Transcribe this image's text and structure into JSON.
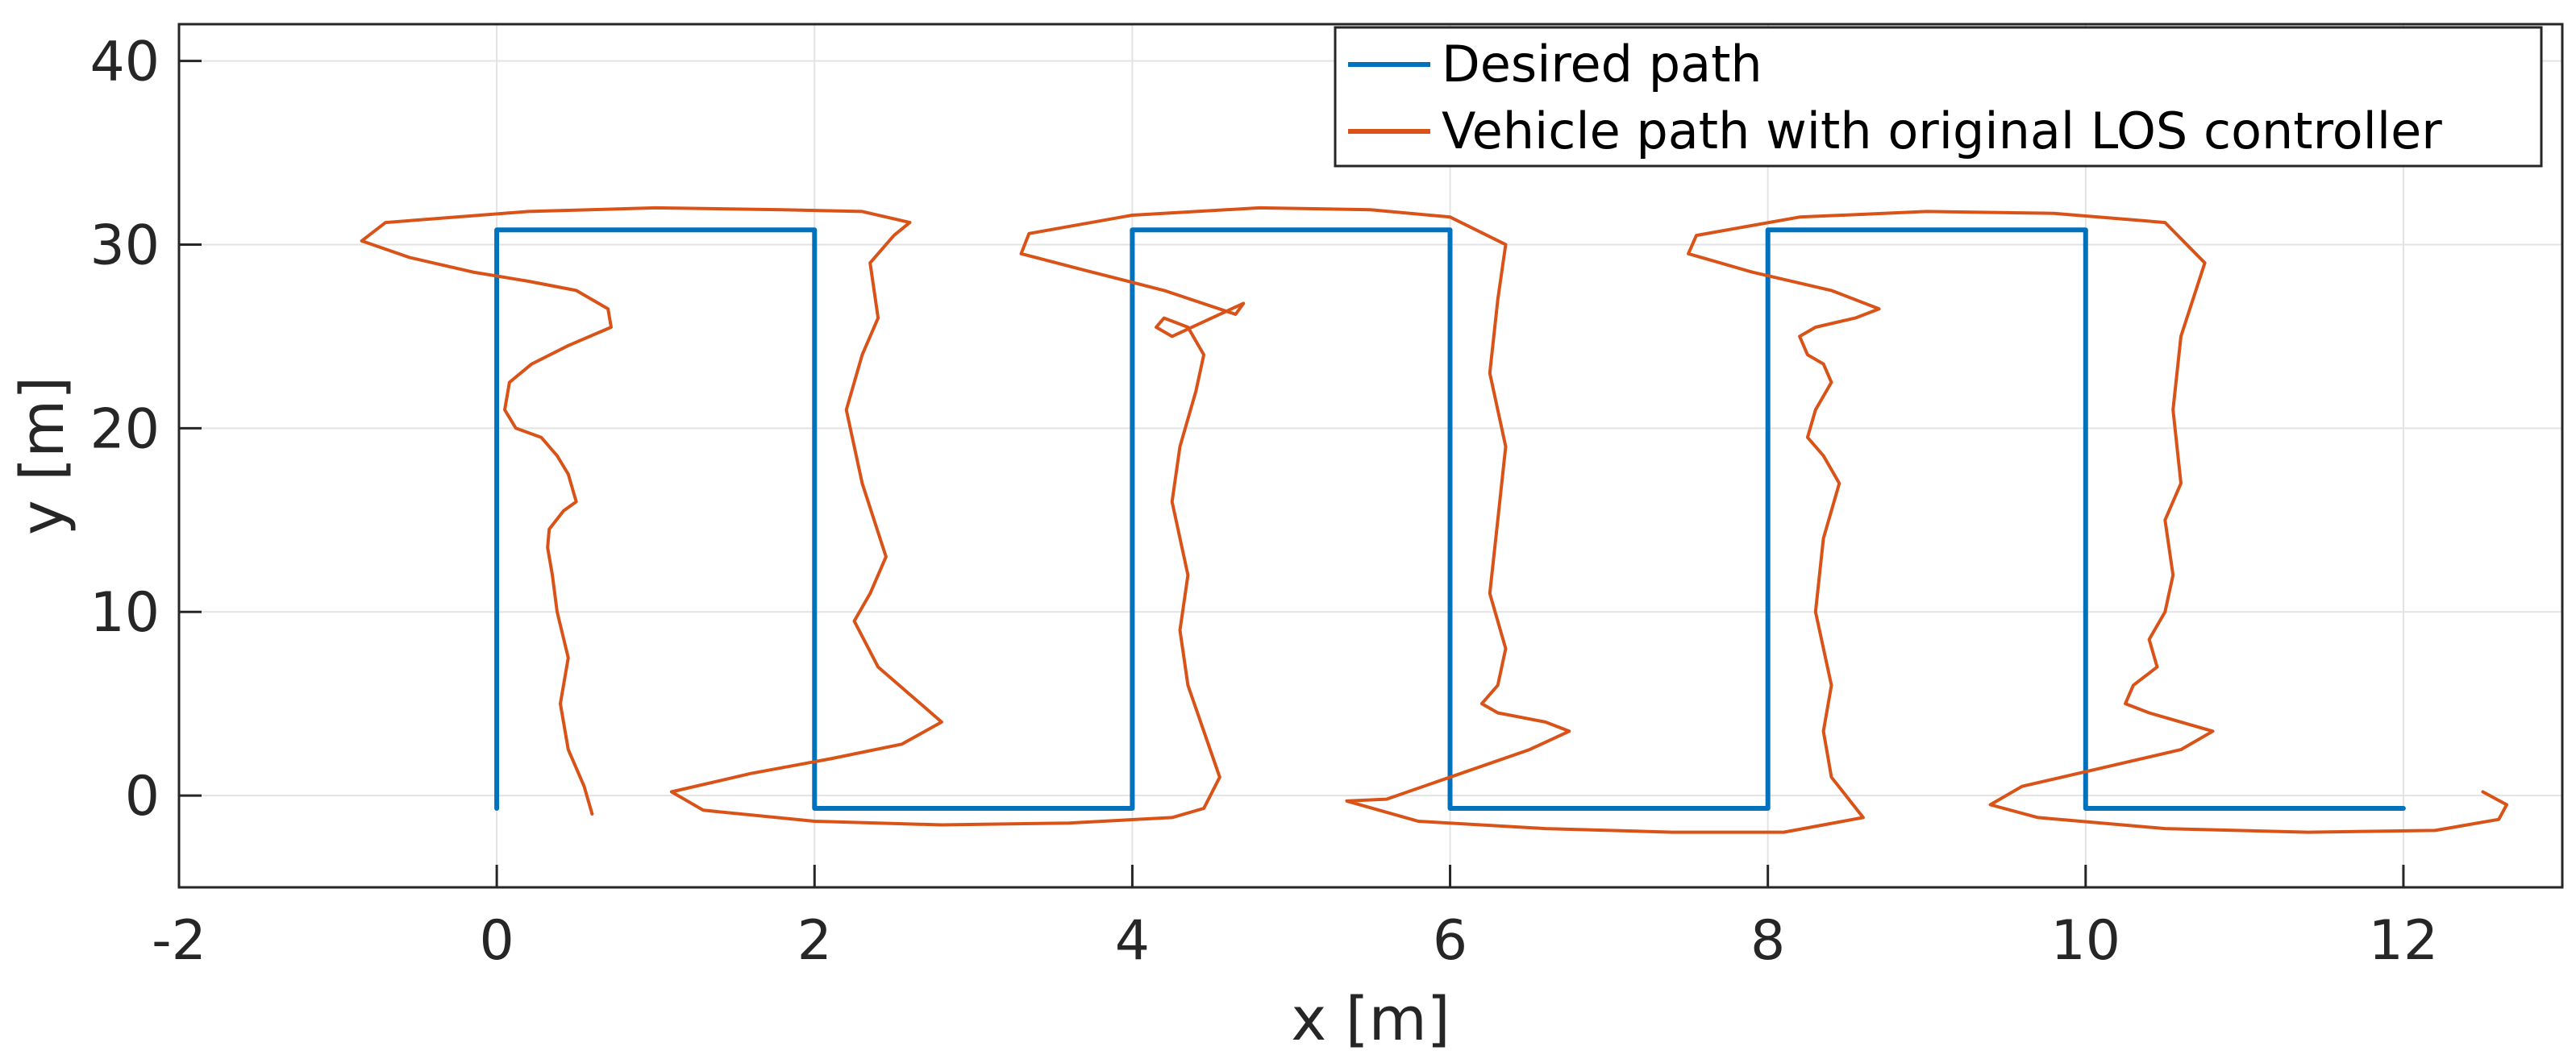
{
  "chart_data": {
    "type": "line",
    "xlabel": "x [m]",
    "ylabel": "y [m]",
    "xlim": [
      -2,
      13
    ],
    "ylim": [
      -5,
      42
    ],
    "xticks": [
      -2,
      0,
      2,
      4,
      6,
      8,
      10,
      12
    ],
    "yticks": [
      0,
      10,
      20,
      30,
      40
    ],
    "xtick_labels": [
      "-2",
      "0",
      "2",
      "4",
      "6",
      "8",
      "10",
      "12"
    ],
    "ytick_labels": [
      "0",
      "10",
      "20",
      "30",
      "40"
    ],
    "grid": true,
    "legend_position": "top-right",
    "series": [
      {
        "name": "Desired path",
        "color": "#0072BD",
        "x": [
          0,
          0,
          2,
          2,
          4,
          4,
          6,
          6,
          8,
          8,
          10,
          10,
          12
        ],
        "y": [
          -0.7,
          30.8,
          30.8,
          -0.7,
          -0.7,
          30.8,
          30.8,
          -0.7,
          -0.7,
          30.8,
          30.8,
          -0.7,
          -0.7
        ]
      },
      {
        "name": "Vehicle path with original LOS controller",
        "color": "#D95319",
        "x": [
          0.6,
          0.55,
          0.45,
          0.4,
          0.45,
          0.38,
          0.35,
          0.32,
          0.33,
          0.42,
          0.5,
          0.45,
          0.38,
          0.28,
          0.12,
          0.05,
          0.08,
          0.22,
          0.45,
          0.72,
          0.7,
          0.5,
          0.2,
          -0.15,
          -0.55,
          -0.85,
          -0.7,
          0.2,
          1.0,
          1.8,
          2.3,
          2.6,
          2.5,
          2.35,
          2.4,
          2.3,
          2.2,
          2.3,
          2.45,
          2.35,
          2.25,
          2.4,
          2.6,
          2.8,
          2.55,
          2.1,
          1.6,
          1.1,
          1.3,
          2.0,
          2.8,
          3.6,
          4.25,
          4.45,
          4.55,
          4.45,
          4.35,
          4.3,
          4.35,
          4.25,
          4.3,
          4.4,
          4.45,
          4.35,
          4.2,
          4.15,
          4.25,
          4.5,
          4.7,
          4.65,
          4.2,
          3.7,
          3.3,
          3.35,
          4.0,
          4.8,
          5.5,
          6.0,
          6.35,
          6.3,
          6.25,
          6.35,
          6.3,
          6.25,
          6.35,
          6.3,
          6.2,
          6.3,
          6.6,
          6.75,
          6.5,
          6.0,
          5.6,
          5.35,
          5.8,
          6.6,
          7.4,
          8.1,
          8.6,
          8.4,
          8.35,
          8.4,
          8.3,
          8.35,
          8.45,
          8.35,
          8.25,
          8.3,
          8.4,
          8.35,
          8.25,
          8.2,
          8.3,
          8.55,
          8.7,
          8.4,
          7.9,
          7.5,
          7.55,
          8.2,
          9.0,
          9.8,
          10.5,
          10.75,
          10.6,
          10.55,
          10.6,
          10.5,
          10.55,
          10.5,
          10.4,
          10.45,
          10.3,
          10.25,
          10.4,
          10.6,
          10.8,
          10.6,
          10.1,
          9.6,
          9.4,
          9.7,
          10.5,
          11.4,
          12.2,
          12.6,
          12.65,
          12.5
        ],
        "y": [
          -1.0,
          0.5,
          2.5,
          5.0,
          7.5,
          10.0,
          12.0,
          13.5,
          14.5,
          15.5,
          16.0,
          17.5,
          18.5,
          19.5,
          20.0,
          21.0,
          22.5,
          23.5,
          24.5,
          25.5,
          26.5,
          27.5,
          28.0,
          28.5,
          29.3,
          30.2,
          31.2,
          31.8,
          32.0,
          31.9,
          31.8,
          31.2,
          30.5,
          29.0,
          26.0,
          24.0,
          21.0,
          17.0,
          13.0,
          11.0,
          9.5,
          7.0,
          5.5,
          4.0,
          2.8,
          2.0,
          1.2,
          0.2,
          -0.8,
          -1.4,
          -1.6,
          -1.5,
          -1.2,
          -0.7,
          1.0,
          3.5,
          6.0,
          9.0,
          12.0,
          16.0,
          19.0,
          22.0,
          24.0,
          25.5,
          26.0,
          25.5,
          25.0,
          26.0,
          26.8,
          26.2,
          27.5,
          28.6,
          29.5,
          30.6,
          31.6,
          32.0,
          31.9,
          31.5,
          30.0,
          27.0,
          23.0,
          19.0,
          15.0,
          11.0,
          8.0,
          6.0,
          5.0,
          4.5,
          4.0,
          3.5,
          2.5,
          1.0,
          -0.2,
          -0.3,
          -1.4,
          -1.8,
          -2.0,
          -2.0,
          -1.2,
          1.0,
          3.5,
          6.0,
          10.0,
          14.0,
          17.0,
          18.5,
          19.5,
          21.0,
          22.5,
          23.5,
          24.0,
          25.0,
          25.5,
          26.0,
          26.5,
          27.5,
          28.5,
          29.5,
          30.5,
          31.5,
          31.8,
          31.7,
          31.2,
          29.0,
          25.0,
          21.0,
          17.0,
          15.0,
          12.0,
          10.0,
          8.5,
          7.0,
          6.0,
          5.0,
          4.5,
          4.0,
          3.5,
          2.5,
          1.5,
          0.5,
          -0.5,
          -1.2,
          -1.8,
          -2.0,
          -1.9,
          -1.3,
          -0.5,
          0.2
        ]
      }
    ]
  }
}
